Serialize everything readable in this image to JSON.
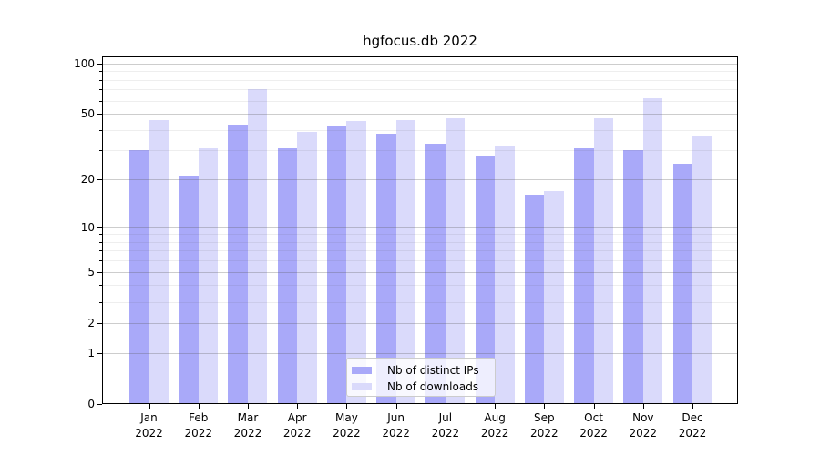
{
  "title": "hgfocus.db 2022",
  "chart_data": {
    "type": "bar",
    "title": "hgfocus.db 2022",
    "scale": "log1p",
    "grid": "both",
    "legend_position": "lower center",
    "year": "2022",
    "categories": [
      "Jan",
      "Feb",
      "Mar",
      "Apr",
      "May",
      "Jun",
      "Jul",
      "Aug",
      "Sep",
      "Oct",
      "Nov",
      "Dec"
    ],
    "series": [
      {
        "name": "Nb of distinct IPs",
        "color": "#a9a9f9",
        "values": [
          30,
          21,
          43,
          31,
          42,
          38,
          33,
          28,
          16,
          31,
          30,
          25
        ]
      },
      {
        "name": "Nb of downloads",
        "color": "#dadafb",
        "values": [
          46,
          31,
          70,
          39,
          45,
          46,
          47,
          32,
          17,
          47,
          62,
          37
        ]
      }
    ],
    "yticks": [
      0,
      1,
      2,
      5,
      10,
      20,
      50,
      100
    ],
    "minor_yticks": [
      3,
      4,
      6,
      7,
      8,
      9,
      30,
      40,
      60,
      70,
      80,
      90
    ],
    "ylim": [
      0,
      110
    ],
    "xlabel": "",
    "ylabel": ""
  }
}
